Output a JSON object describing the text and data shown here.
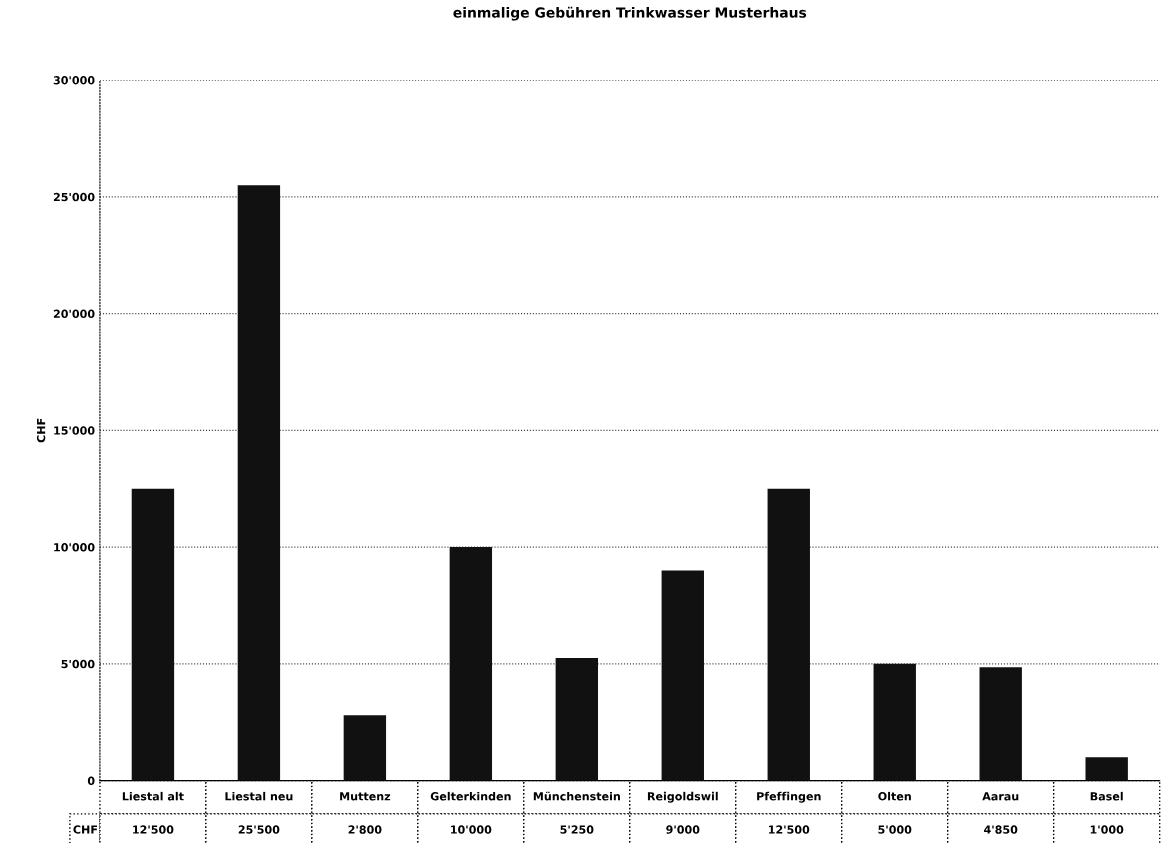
{
  "chart_data": {
    "type": "bar",
    "title": "einmalige Gebühren Trinkwasser Musterhaus",
    "ylabel": "CHF",
    "categories": [
      "Liestal alt",
      "Liestal neu",
      "Muttenz",
      "Gelterkinden",
      "Münchenstein",
      "Reigoldswil",
      "Pfeffingen",
      "Olten",
      "Aarau",
      "Basel"
    ],
    "series": [
      {
        "name": "CHF",
        "color": "#111111",
        "values": [
          12500,
          25500,
          2800,
          10000,
          5250,
          9000,
          12500,
          5000,
          4850,
          1000
        ],
        "value_labels": [
          "12'500",
          "25'500",
          "2'800",
          "10'000",
          "5'250",
          "9'000",
          "12'500",
          "5'000",
          "4'850",
          "1'000"
        ]
      }
    ],
    "ylim": [
      0,
      30000
    ],
    "yticks": [
      {
        "value": 0,
        "label": "0"
      },
      {
        "value": 5000,
        "label": "5'000"
      },
      {
        "value": 10000,
        "label": "10'000"
      },
      {
        "value": 15000,
        "label": "15'000"
      },
      {
        "value": 20000,
        "label": "20'000"
      },
      {
        "value": 25000,
        "label": "25'000"
      },
      {
        "value": 30000,
        "label": "30'000"
      }
    ],
    "grid": "y",
    "legend": false
  }
}
